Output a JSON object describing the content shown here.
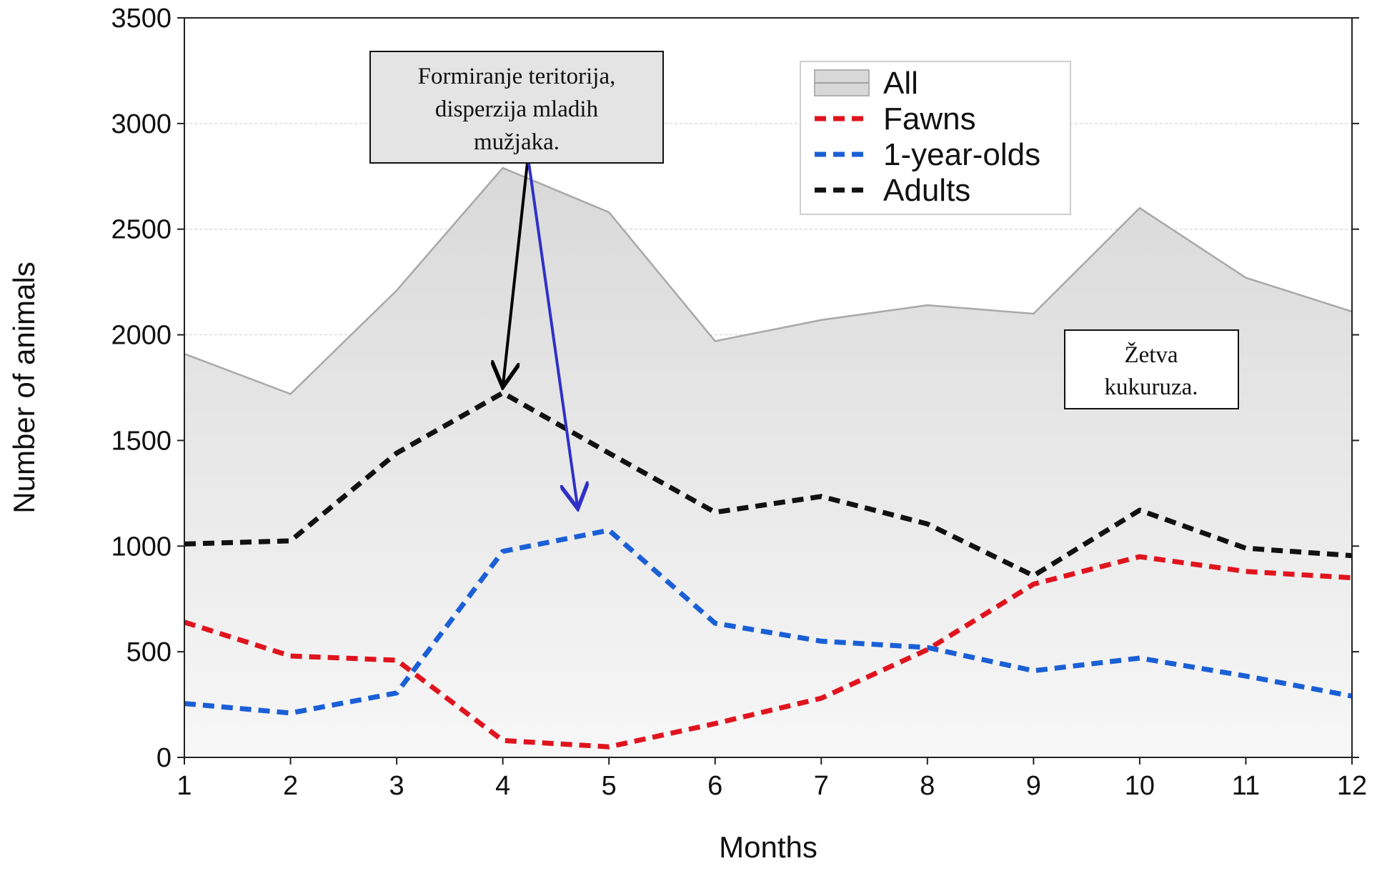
{
  "chart_data": {
    "type": "line",
    "xlabel": "Months",
    "ylabel": "Number of animals",
    "x": [
      1,
      2,
      3,
      4,
      5,
      6,
      7,
      8,
      9,
      10,
      11,
      12
    ],
    "xlim": [
      1,
      12
    ],
    "ylim": [
      0,
      3500
    ],
    "yticks": [
      0,
      500,
      1000,
      1500,
      2000,
      2500,
      3000,
      3500
    ],
    "grid": "horizontal",
    "legend_position": "top-right",
    "series": [
      {
        "name": "All",
        "style": "area",
        "color": "#dcdcdc",
        "values": [
          1910,
          1720,
          2210,
          2790,
          2580,
          1970,
          2070,
          2140,
          2100,
          2600,
          2270,
          2110
        ]
      },
      {
        "name": "Fawns",
        "style": "dashed",
        "color": "#e0141e",
        "values": [
          640,
          480,
          460,
          80,
          50,
          160,
          280,
          510,
          820,
          950,
          880,
          850
        ]
      },
      {
        "name": "1-year-olds",
        "style": "dashed",
        "color": "#1a5fd6",
        "values": [
          255,
          210,
          305,
          975,
          1075,
          635,
          550,
          520,
          410,
          470,
          385,
          290
        ]
      },
      {
        "name": "Adults",
        "style": "dashed",
        "color": "#111111",
        "values": [
          1010,
          1025,
          1440,
          1725,
          1440,
          1160,
          1235,
          1105,
          860,
          1170,
          990,
          955
        ]
      }
    ],
    "annotations": [
      {
        "text": [
          "Formiranje teritorija,",
          "disperzija mladih",
          "mužjaka."
        ]
      },
      {
        "text": [
          "Žetva",
          "kukuruza."
        ]
      }
    ]
  }
}
